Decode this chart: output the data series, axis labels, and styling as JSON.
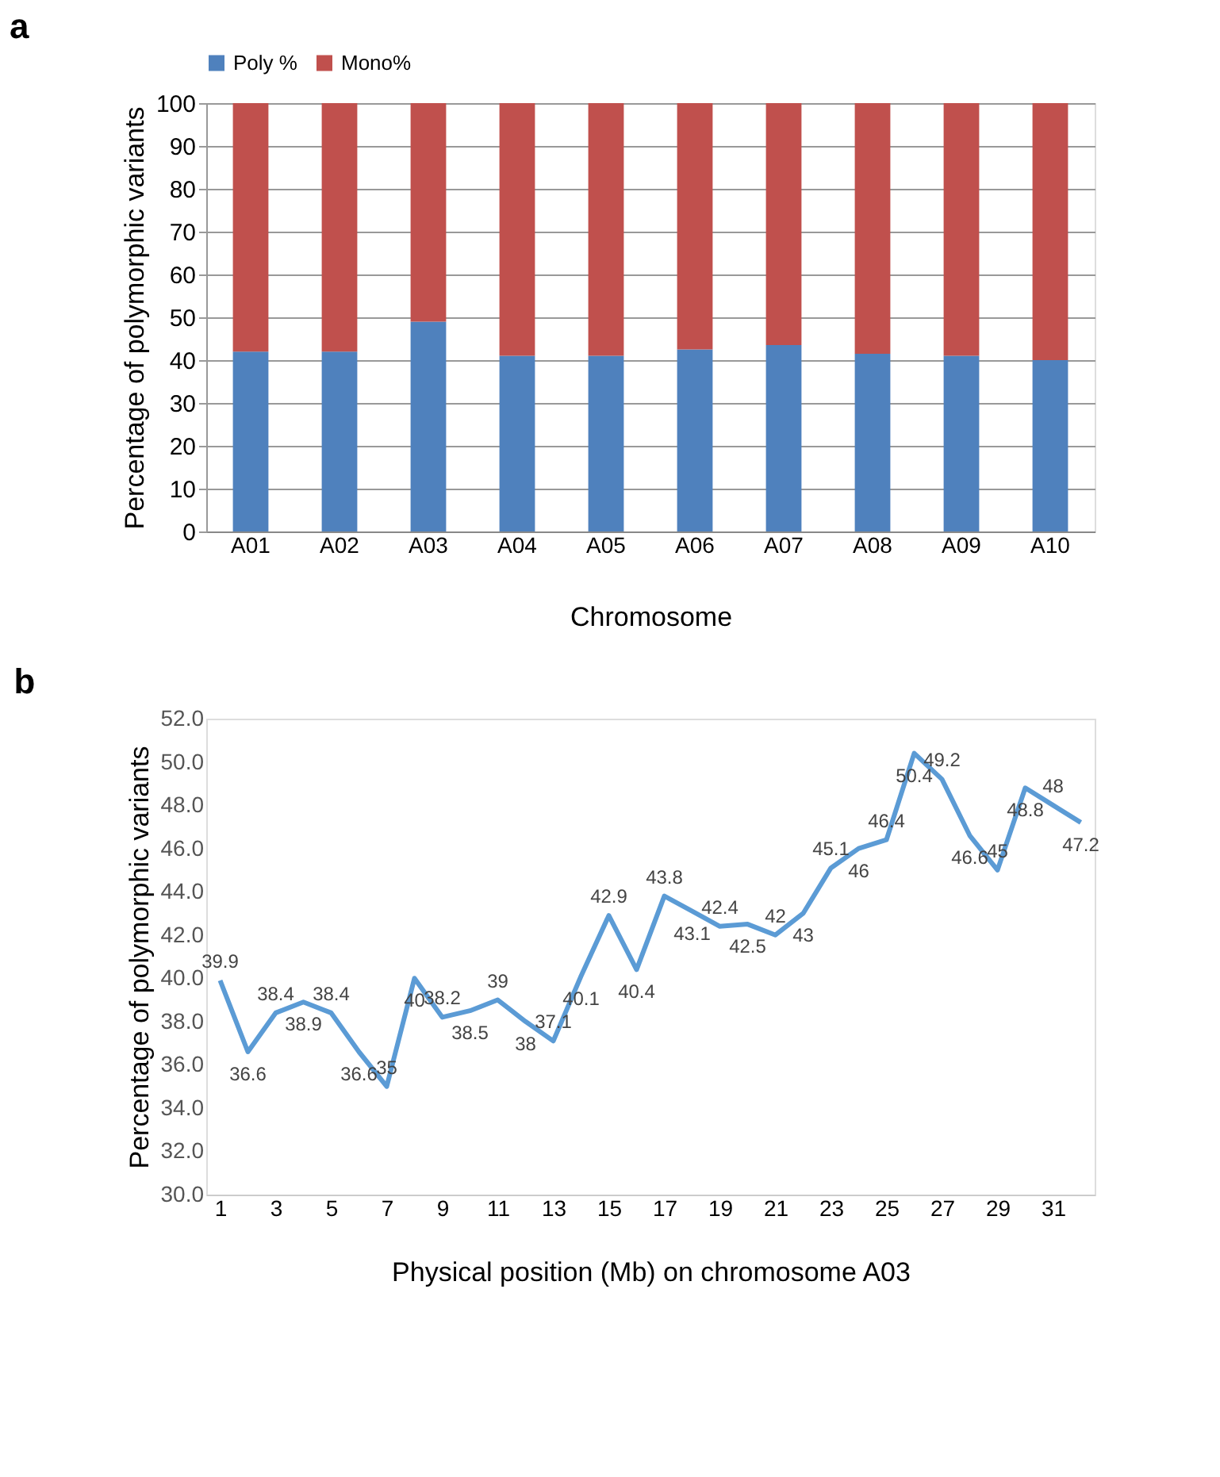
{
  "chart_data": [
    {
      "type": "bar",
      "stacked": true,
      "annotations": [
        "a"
      ],
      "categories": [
        "A01",
        "A02",
        "A03",
        "A04",
        "A05",
        "A06",
        "A07",
        "A08",
        "A09",
        "A10"
      ],
      "series": [
        {
          "name": "Poly %",
          "color": "#4f81bd",
          "values": [
            42,
            42,
            49,
            41,
            41,
            42.5,
            43.5,
            41.5,
            41,
            40
          ]
        },
        {
          "name": "Mono%",
          "color": "#c0504d",
          "values": [
            58,
            58,
            51,
            59,
            59,
            57.5,
            56.5,
            58.5,
            59,
            60
          ]
        }
      ],
      "xlabel": "Chromosome",
      "ylabel": "Percentage of polymorphic variants",
      "ylim": [
        0,
        100
      ],
      "yticks": [
        0,
        10,
        20,
        30,
        40,
        50,
        60,
        70,
        80,
        90,
        100
      ],
      "grid": "y",
      "legend": "top"
    },
    {
      "type": "line",
      "annotations": [
        "b"
      ],
      "x": [
        1,
        2,
        3,
        4,
        5,
        6,
        7,
        8,
        9,
        10,
        11,
        12,
        13,
        14,
        15,
        16,
        17,
        18,
        19,
        20,
        21,
        22,
        23,
        24,
        25,
        26,
        27,
        28,
        29,
        30,
        31,
        32
      ],
      "series": [
        {
          "color": "#5b9bd5",
          "values": [
            39.9,
            36.6,
            38.4,
            38.9,
            38.4,
            36.6,
            35,
            40,
            38.2,
            38.5,
            39,
            38,
            37.1,
            40.1,
            42.9,
            40.4,
            43.8,
            43.1,
            42.4,
            42.5,
            42,
            43,
            45.1,
            46,
            46.4,
            50.4,
            49.2,
            46.6,
            45,
            48.8,
            48,
            47.2
          ]
        }
      ],
      "data_labels": true,
      "marker": "none",
      "line_style": "solid",
      "xlabel": "Physical position (Mb) on chromosome A03",
      "ylabel": "Percentage of polymorphic variants",
      "xlim": [
        0.5,
        32.5
      ],
      "xticks": [
        1,
        3,
        5,
        7,
        9,
        11,
        13,
        15,
        17,
        19,
        21,
        23,
        25,
        27,
        29,
        31
      ],
      "ylim": [
        30,
        52
      ],
      "yticks": [
        {
          "value": 30,
          "label": "30.0"
        },
        {
          "value": 32,
          "label": "32.0"
        },
        {
          "value": 34,
          "label": "34.0"
        },
        {
          "value": 36,
          "label": "36.0"
        },
        {
          "value": 38,
          "label": "38.0"
        },
        {
          "value": 40,
          "label": "40.0"
        },
        {
          "value": 42,
          "label": "42.0"
        },
        {
          "value": 44,
          "label": "44.0"
        },
        {
          "value": 46,
          "label": "46.0"
        },
        {
          "value": 48,
          "label": "48.0"
        },
        {
          "value": 50,
          "label": "50.0"
        },
        {
          "value": 52,
          "label": "52.0"
        }
      ],
      "grid": false
    }
  ]
}
